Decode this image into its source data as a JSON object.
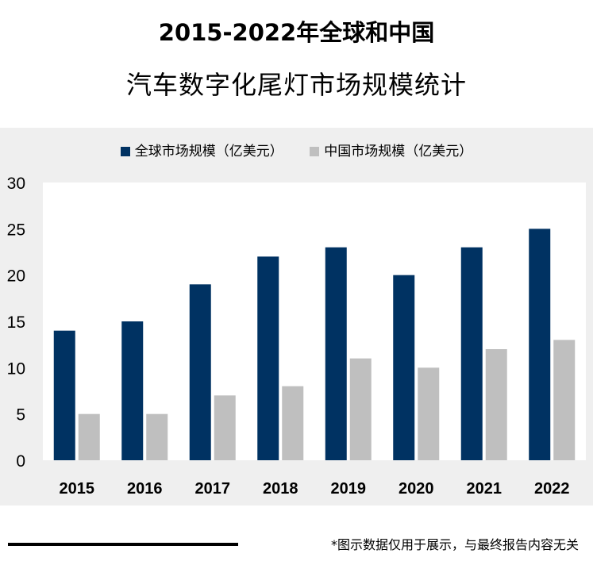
{
  "header": {
    "title_line1": "2015-2022年全球和中国",
    "title_line2": "汽车数字化尾灯市场规模统计"
  },
  "footnote": "*图示数据仅用于展示，与最终报告内容无关",
  "colors": {
    "global": "#003262",
    "china": "#bfbfbf",
    "plot_bg": "#ffffff",
    "panel_bg": "#efefef"
  },
  "chart_data": {
    "type": "bar",
    "categories": [
      "2015",
      "2016",
      "2017",
      "2018",
      "2019",
      "2020",
      "2021",
      "2022"
    ],
    "series": [
      {
        "name": "全球市场规模（亿美元）",
        "values": [
          14,
          15,
          19,
          22,
          23,
          20,
          23,
          25
        ]
      },
      {
        "name": "中国市场规模（亿美元）",
        "values": [
          5,
          5,
          7,
          8,
          11,
          10,
          12,
          13
        ]
      }
    ],
    "ylim": [
      0,
      30
    ],
    "yticks": [
      "0",
      "5",
      "10",
      "15",
      "20",
      "25",
      "30"
    ],
    "xlabel": "",
    "ylabel": "",
    "legend": "top",
    "grid": false
  }
}
